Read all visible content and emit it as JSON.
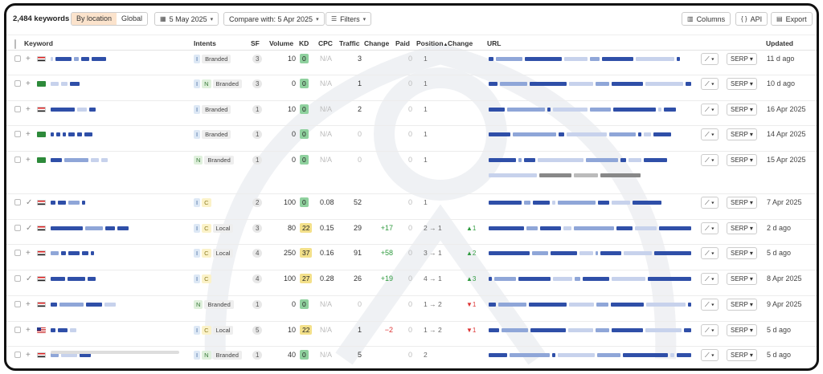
{
  "toolbar": {
    "keyword_count": "2,484 keywords",
    "tab_by_location": "By location",
    "tab_global": "Global",
    "date_button": "5 May 2025",
    "compare_button": "Compare with: 5 Apr 2025",
    "filters_button": "Filters",
    "columns_button": "Columns",
    "api_button": "API",
    "export_button": "Export",
    "date_icon": "calendar-icon",
    "filters_icon": "filter-icon",
    "columns_icon": "columns-icon",
    "api_icon": "code-braces-icon",
    "export_icon": "document-icon"
  },
  "columns": {
    "keyword": "Keyword",
    "intents": "Intents",
    "sf": "SF",
    "volume": "Volume",
    "kd": "KD",
    "cpc": "CPC",
    "traffic": "Traffic",
    "change": "Change",
    "paid": "Paid",
    "position": "Position",
    "position_sort": "▲",
    "position_change": "Change",
    "url": "URL",
    "updated": "Updated"
  },
  "kd_colors": {
    "green": "#8fd19e",
    "yellow": "#f3e08a"
  },
  "rows": [
    {
      "action": "+",
      "flag": "eg",
      "intents": [
        "I"
      ],
      "tag": "Branded",
      "sf": "3",
      "volume": "10",
      "kd": "0",
      "kd_color": "green",
      "cpc": "N/A",
      "traffic": "3",
      "change": "",
      "paid": "0",
      "position": "1",
      "pos_change": "",
      "serp": "SERP",
      "updated": "11 d ago"
    },
    {
      "action": "+",
      "flag": "sa",
      "intents": [
        "I",
        "N"
      ],
      "tag": "Branded",
      "sf": "3",
      "volume": "0",
      "kd": "0",
      "kd_color": "green",
      "cpc": "N/A",
      "traffic": "1",
      "change": "",
      "paid": "0",
      "position": "1",
      "pos_change": "",
      "serp": "SERP",
      "updated": "10 d ago"
    },
    {
      "action": "+",
      "flag": "eg",
      "intents": [
        "I"
      ],
      "tag": "Branded",
      "sf": "1",
      "volume": "10",
      "kd": "0",
      "kd_color": "green",
      "cpc": "N/A",
      "traffic": "2",
      "change": "",
      "paid": "0",
      "position": "1",
      "pos_change": "",
      "serp": "SERP",
      "updated": "16 Apr 2025"
    },
    {
      "action": "+",
      "flag": "sa",
      "intents": [
        "I"
      ],
      "tag": "Branded",
      "sf": "1",
      "volume": "0",
      "kd": "0",
      "kd_color": "green",
      "cpc": "N/A",
      "traffic": "0",
      "change": "",
      "paid": "0",
      "position": "1",
      "pos_change": "",
      "serp": "SERP",
      "updated": "14 Apr 2025"
    },
    {
      "action": "+",
      "flag": "sa",
      "intents": [
        "N"
      ],
      "tag": "Branded",
      "sf": "1",
      "volume": "0",
      "kd": "0",
      "kd_color": "green",
      "cpc": "N/A",
      "traffic": "0",
      "change": "",
      "paid": "0",
      "position": "1",
      "pos_change": "",
      "serp": "SERP",
      "updated": "15 Apr 2025"
    },
    {
      "action": "✓",
      "flag": "eg",
      "intents": [
        "I",
        "C"
      ],
      "tag": "",
      "sf": "2",
      "volume": "100",
      "kd": "0",
      "kd_color": "green",
      "cpc": "0.08",
      "traffic": "52",
      "change": "",
      "paid": "0",
      "position": "1",
      "pos_change": "",
      "serp": "SERP",
      "updated": "7 Apr 2025"
    },
    {
      "action": "✓",
      "flag": "eg",
      "intents": [
        "I",
        "C"
      ],
      "tag": "Local",
      "sf": "3",
      "volume": "80",
      "kd": "22",
      "kd_color": "yellow",
      "cpc": "0.15",
      "traffic": "29",
      "change": "+17",
      "paid": "0",
      "position": "2 → 1",
      "pos_change": "▲1",
      "serp": "SERP",
      "updated": "2 d ago"
    },
    {
      "action": "+",
      "flag": "eg",
      "intents": [
        "I",
        "C"
      ],
      "tag": "Local",
      "sf": "4",
      "volume": "250",
      "kd": "37",
      "kd_color": "yellow",
      "cpc": "0.16",
      "traffic": "91",
      "change": "+58",
      "paid": "0",
      "position": "3 → 1",
      "pos_change": "▲2",
      "serp": "SERP",
      "updated": "5 d ago"
    },
    {
      "action": "✓",
      "flag": "eg",
      "intents": [
        "I",
        "C"
      ],
      "tag": "",
      "sf": "4",
      "volume": "100",
      "kd": "27",
      "kd_color": "yellow",
      "cpc": "0.28",
      "traffic": "26",
      "change": "+19",
      "paid": "0",
      "position": "4 → 1",
      "pos_change": "▲3",
      "serp": "SERP",
      "updated": "8 Apr 2025"
    },
    {
      "action": "+",
      "flag": "eg",
      "intents": [
        "N"
      ],
      "tag": "Branded",
      "sf": "1",
      "volume": "0",
      "kd": "0",
      "kd_color": "green",
      "cpc": "N/A",
      "traffic": "0",
      "change": "",
      "paid": "0",
      "position": "1 → 2",
      "pos_change": "▼1",
      "serp": "SERP",
      "updated": "9 Apr 2025"
    },
    {
      "action": "+",
      "flag": "us",
      "intents": [
        "I",
        "C"
      ],
      "tag": "Local",
      "sf": "5",
      "volume": "10",
      "kd": "22",
      "kd_color": "yellow",
      "cpc": "N/A",
      "traffic": "1",
      "change": "−2",
      "paid": "0",
      "position": "1 → 2",
      "pos_change": "▼1",
      "serp": "SERP",
      "updated": "5 d ago"
    },
    {
      "action": "+",
      "flag": "eg",
      "intents": [
        "I",
        "N"
      ],
      "tag": "Branded",
      "sf": "1",
      "volume": "40",
      "kd": "0",
      "kd_color": "green",
      "cpc": "N/A",
      "traffic": "5",
      "change": "",
      "paid": "0",
      "position": "2",
      "pos_change": "",
      "serp": "SERP",
      "updated": "5 d ago"
    }
  ]
}
